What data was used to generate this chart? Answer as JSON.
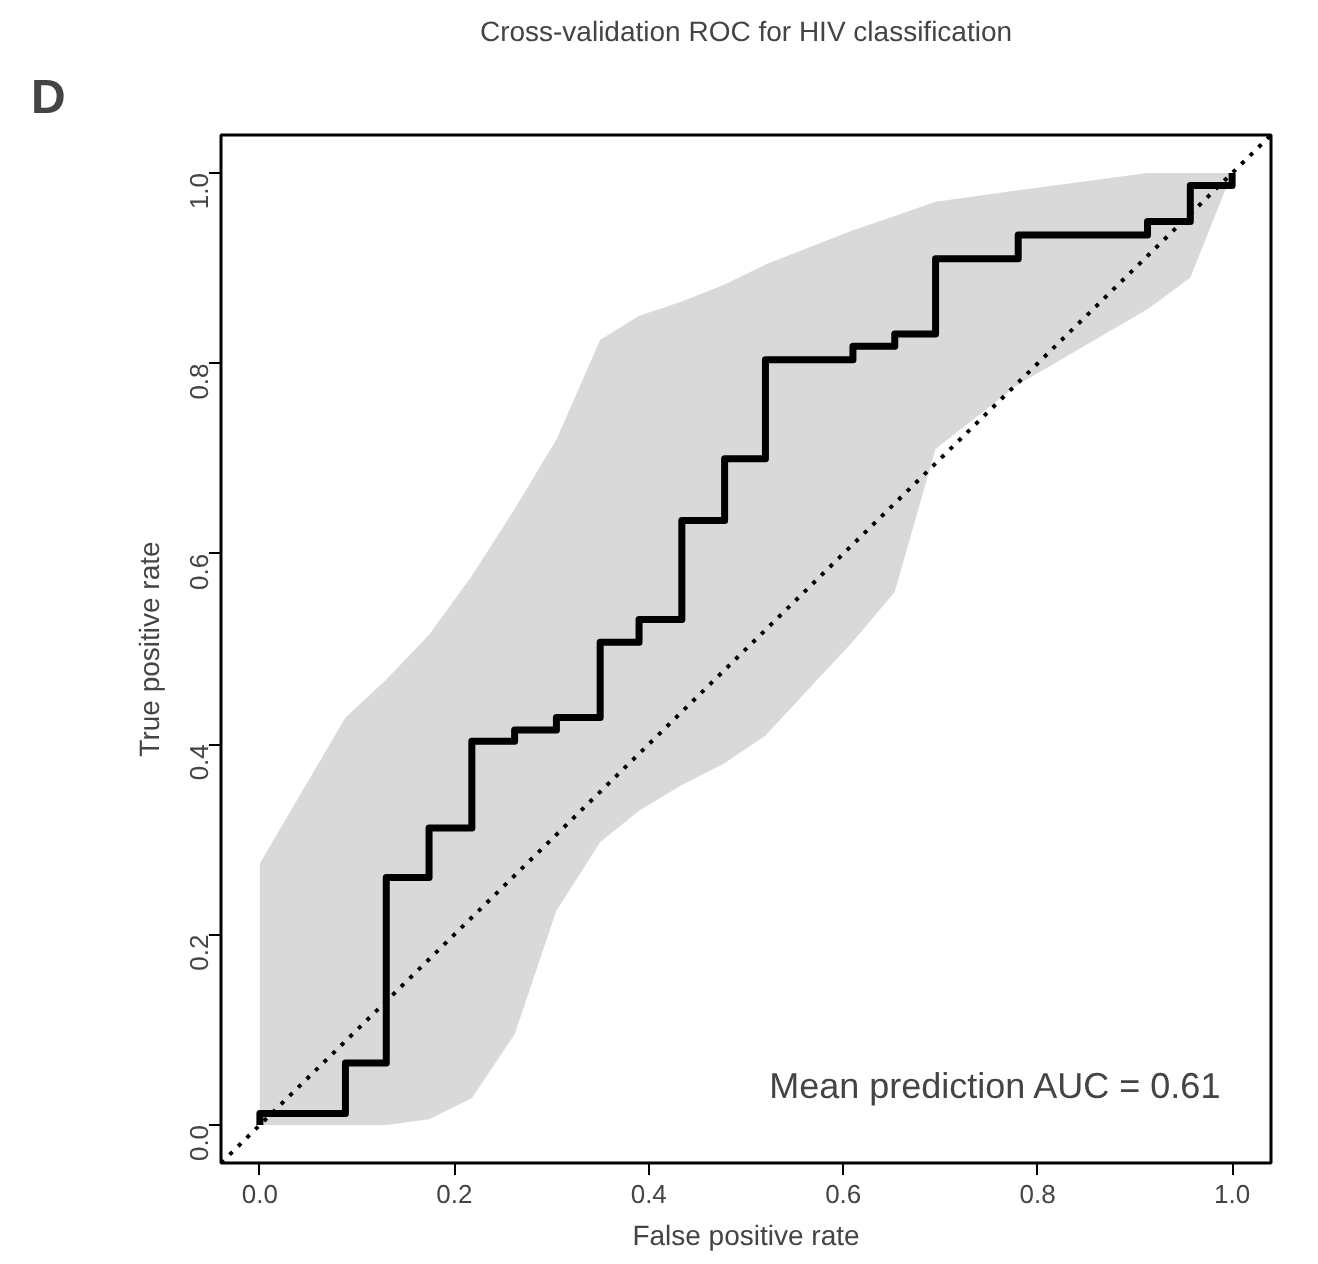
{
  "chart_data": {
    "type": "step",
    "title": "Cross-validation ROC for HIV classification",
    "xlabel": "False positive rate",
    "ylabel": "True positive rate",
    "annotations": [
      "D",
      "Mean prediction AUC = 0.61"
    ],
    "xlim": [
      -0.04,
      1.04
    ],
    "ylim": [
      -0.04,
      1.04
    ],
    "xticks": [
      {
        "value": 0,
        "label": "0.0"
      },
      0.2,
      0.4,
      0.6,
      0.8,
      {
        "value": 1,
        "label": "1.0"
      }
    ],
    "yticks": [
      {
        "value": 0,
        "label": "0.0"
      },
      0.2,
      0.4,
      0.6,
      0.8,
      {
        "value": 1,
        "label": "1.0"
      }
    ],
    "grid": false,
    "series": [
      {
        "type": "line",
        "color": "#000000",
        "line_style": "dotted",
        "x": [
          -0.04,
          1.04
        ],
        "values": [
          -0.04,
          1.04
        ]
      },
      {
        "color": "#000000",
        "x": [
          0,
          0,
          0.088,
          0.13,
          0.174,
          0.218,
          0.262,
          0.305,
          0.35,
          0.39,
          0.434,
          0.478,
          0.52,
          0.61,
          0.653,
          0.695,
          0.78,
          0.913,
          0.957,
          1.0
        ],
        "values": [
          0,
          0.012,
          0.065,
          0.26,
          0.312,
          0.403,
          0.415,
          0.428,
          0.507,
          0.531,
          0.635,
          0.7,
          0.804,
          0.818,
          0.831,
          0.91,
          0.935,
          0.949,
          0.987,
          1.0
        ],
        "upper": [
          0.275,
          0.275,
          0.428,
          0.468,
          0.515,
          0.577,
          0.647,
          0.72,
          0.825,
          0.85,
          0.865,
          0.883,
          0.904,
          0.94,
          0.955,
          0.97,
          0.982,
          1.0,
          1.0,
          1.0
        ],
        "lower": [
          0,
          0,
          0,
          0,
          0.006,
          0.028,
          0.095,
          0.225,
          0.297,
          0.33,
          0.357,
          0.38,
          0.409,
          0.508,
          0.56,
          0.71,
          0.778,
          0.857,
          0.89,
          1.0
        ]
      }
    ]
  }
}
